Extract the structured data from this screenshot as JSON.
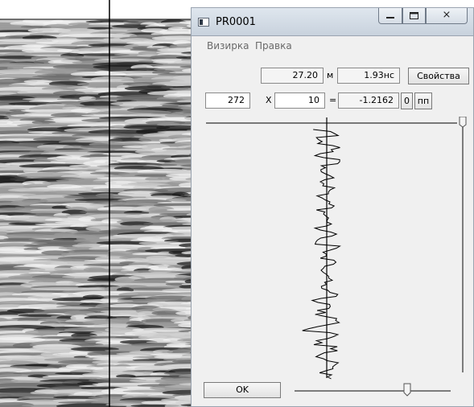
{
  "window": {
    "title": "PR0001",
    "controls": {
      "minimize_icon": "minimize-icon",
      "maximize_icon": "maximize-icon",
      "close_icon": "close-icon",
      "close_glyph": "⨯"
    }
  },
  "menu": {
    "items": [
      "Визирка",
      "Правка"
    ]
  },
  "readout": {
    "distance": "27.20",
    "distance_unit": "м",
    "time": "1.93нс",
    "properties_label": "Свойства"
  },
  "calc": {
    "left": "272",
    "op": "X",
    "right": "10",
    "eq": "=",
    "result": "-1.2162",
    "zero_label": "0",
    "pp_label": "пп"
  },
  "footer": {
    "ok_label": "OK"
  },
  "colors": {
    "window_frame": "#9aa4b0",
    "dialog_bg": "#f0f0f0",
    "trace": "#000000"
  }
}
